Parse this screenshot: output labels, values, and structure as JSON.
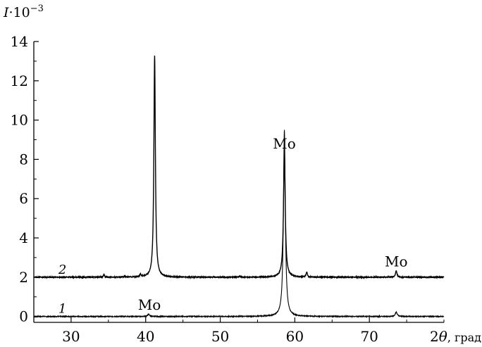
{
  "chart_data": {
    "type": "line",
    "ylabel": {
      "symbol": "I",
      "mult": "·10",
      "exp": "−3"
    },
    "xlabel": "2θ, град",
    "xlim": [
      25,
      80
    ],
    "ylim": [
      -0.3,
      14
    ],
    "xticks": [
      30,
      40,
      50,
      60,
      70
    ],
    "yticks": [
      0,
      2,
      4,
      6,
      8,
      10,
      12,
      14
    ],
    "grid": false,
    "series": [
      {
        "name": "1",
        "baseline": 0,
        "peaks": [
          {
            "x": 40.4,
            "y": 0.12,
            "w": 0.15
          },
          {
            "x": 58.6,
            "y": 9.5,
            "w": 0.15
          },
          {
            "x": 73.6,
            "y": 0.22,
            "w": 0.16
          }
        ]
      },
      {
        "name": "2",
        "baseline": 2,
        "peaks": [
          {
            "x": 34.4,
            "y": 0.15,
            "w": 0.08
          },
          {
            "x": 37.2,
            "y": 0.05,
            "w": 0.08
          },
          {
            "x": 39.3,
            "y": 0.14,
            "w": 0.08
          },
          {
            "x": 41.2,
            "y": 11.3,
            "w": 0.12
          },
          {
            "x": 52.6,
            "y": 0.05,
            "w": 0.1
          },
          {
            "x": 58.6,
            "y": 6.4,
            "w": 0.14
          },
          {
            "x": 61.6,
            "y": 0.25,
            "w": 0.1
          },
          {
            "x": 73.6,
            "y": 0.32,
            "w": 0.12
          }
        ]
      }
    ],
    "annotations": [
      {
        "text": "Mo",
        "x": 58.6,
        "y": 8.55
      },
      {
        "text": "Mo",
        "x": 73.6,
        "y": 2.55
      },
      {
        "text": "Mo",
        "x": 40.5,
        "y": 0.35
      }
    ]
  }
}
